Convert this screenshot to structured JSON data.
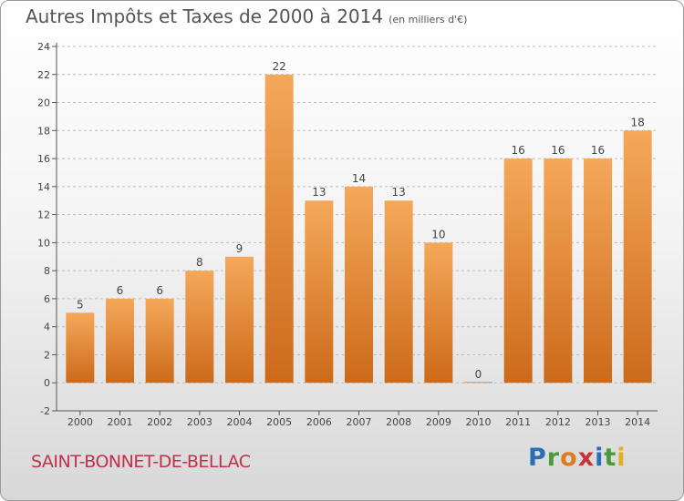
{
  "title": {
    "main": "Autres Impôts et Taxes de 2000 à 2014",
    "unit": "(en milliers d'€)"
  },
  "commune": "SAINT-BONNET-DE-BELLAC",
  "logo": {
    "letters": [
      "P",
      "r",
      "o",
      "x",
      "i",
      "t",
      "i"
    ],
    "colors": [
      "#2a6fb5",
      "#4a9a3a",
      "#e07a20",
      "#c8333a",
      "#2a6fb5",
      "#4a9a3a",
      "#e0b020"
    ]
  },
  "colors": {
    "bar_light": "#f5a85a",
    "bar_dark": "#cc6a1a",
    "axis": "#555555",
    "grid": "#bbbbbb"
  },
  "chart_data": {
    "type": "bar",
    "categories": [
      "2000",
      "2001",
      "2002",
      "2003",
      "2004",
      "2005",
      "2006",
      "2007",
      "2008",
      "2009",
      "2010",
      "2011",
      "2012",
      "2013",
      "2014"
    ],
    "values": [
      5,
      6,
      6,
      8,
      9,
      22,
      13,
      14,
      13,
      10,
      0,
      16,
      16,
      16,
      18
    ],
    "data_labels": [
      "5",
      "6",
      "6",
      "8",
      "9",
      "22",
      "13",
      "14",
      "13",
      "10",
      "0",
      "16",
      "16",
      "16",
      "18"
    ],
    "yticks": [
      "-2",
      "0",
      "2",
      "4",
      "6",
      "8",
      "10",
      "12",
      "14",
      "16",
      "18",
      "20",
      "22",
      "24"
    ],
    "ylim": [
      -2,
      24
    ],
    "grid": true
  }
}
